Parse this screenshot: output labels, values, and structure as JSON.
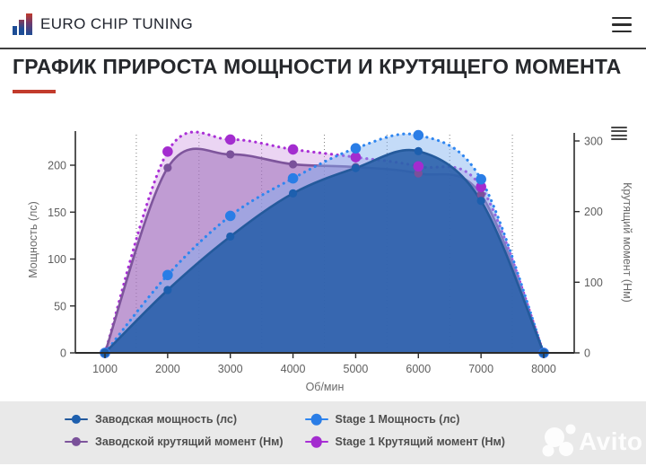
{
  "header": {
    "brand": "EURO CHIP TUNING"
  },
  "page": {
    "title": "ГРАФИК ПРИРОСТА МОЩНОСТИ И КРУТЯЩЕГО МОМЕНТА"
  },
  "accent_color": "#c23b2c",
  "watermark": {
    "label": "Avito"
  },
  "chart_data": {
    "type": "line",
    "x": [
      1000,
      2000,
      3000,
      4000,
      5000,
      6000,
      7000,
      8000
    ],
    "x_tick_labels": [
      "1000",
      "2000",
      "3000",
      "4000",
      "5000",
      "6000",
      "7000",
      "8000"
    ],
    "xlabel": "Об/мин",
    "ylabel_left": "Мощность (лс)",
    "ylabel_right": "Крутящий момент (Нм)",
    "y_left_ticks": [
      0,
      50,
      100,
      150,
      200
    ],
    "y_right_ticks": [
      0,
      100,
      200,
      300
    ],
    "y_left_range": [
      0,
      236
    ],
    "y_right_range": [
      0,
      311
    ],
    "grid": "dotted vertical minor gridlines at 1500-7500 step 1000",
    "legend_position": "bottom",
    "series": [
      {
        "name": "Заводская мощность (лс)",
        "axis": "left",
        "line": "solid",
        "color": "#245a9c",
        "marker_color": "#1d5fae",
        "fill": "rgba(40,95,168,0.88)",
        "marker_r": 4.6,
        "values": [
          0,
          67,
          124,
          170,
          197,
          215,
          162,
          0
        ]
      },
      {
        "name": "Stage 1 Мощность (лс)",
        "axis": "left",
        "line": "dotted",
        "color": "#2f86f0",
        "marker_color": "#2a7de6",
        "fill": "rgba(125,175,240,0.45)",
        "marker_r": 5.8,
        "values": [
          0,
          83,
          146,
          186,
          218,
          232,
          185,
          0
        ]
      },
      {
        "name": "Заводской крутящий момент (Нм)",
        "axis": "right",
        "line": "solid",
        "color": "#7e559c",
        "marker_color": "#7a519a",
        "fill": "rgba(150,100,180,0.5)",
        "marker_r": 4.6,
        "values": [
          0,
          262,
          281,
          267,
          263,
          254,
          224,
          0
        ]
      },
      {
        "name": "Stage 1 Крутящий момент (Нм)",
        "axis": "right",
        "line": "dotted",
        "color": "#a92fd6",
        "marker_color": "#a32ccf",
        "fill": "rgba(205,150,225,0.4)",
        "marker_r": 5.8,
        "values": [
          0,
          285,
          302,
          288,
          277,
          264,
          235,
          0
        ]
      }
    ]
  }
}
